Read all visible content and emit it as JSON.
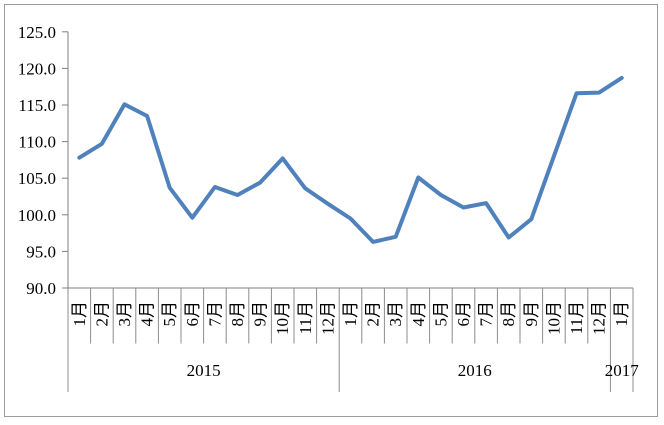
{
  "chart_data": {
    "type": "line",
    "title": "",
    "legend": "none",
    "grid": false,
    "x_axis": {
      "categories": [
        "1月",
        "2月",
        "3月",
        "4月",
        "5月",
        "6月",
        "7月",
        "8月",
        "9月",
        "10月",
        "11月",
        "12月",
        "1月",
        "2月",
        "3月",
        "4月",
        "5月",
        "6月",
        "7月",
        "8月",
        "9月",
        "10月",
        "11月",
        "12月",
        "1月"
      ],
      "year_groups": [
        {
          "label": "2015",
          "span": 12
        },
        {
          "label": "2016",
          "span": 12
        },
        {
          "label": "2017",
          "span": 1
        }
      ]
    },
    "y_axis": {
      "min": 90,
      "max": 125,
      "step": 5,
      "tick_labels": [
        "90.0",
        "95.0",
        "100.0",
        "105.0",
        "110.0",
        "115.0",
        "120.0",
        "125.0"
      ]
    },
    "series": [
      {
        "color": "#4F81BD",
        "values": [
          107.8,
          109.7,
          115.1,
          113.5,
          103.7,
          99.6,
          103.8,
          102.7,
          104.4,
          107.7,
          103.6,
          101.5,
          99.5,
          96.3,
          97.0,
          105.1,
          102.7,
          101.0,
          101.6,
          96.9,
          99.4,
          108.0,
          116.6,
          116.7,
          118.7
        ]
      }
    ],
    "colors": {
      "line": "#4F81BD",
      "axis": "#7F7F7F",
      "separator": "#8C8C8C",
      "text": "#000000",
      "border": "#9C9C9C",
      "background": "#FFFFFF"
    }
  }
}
